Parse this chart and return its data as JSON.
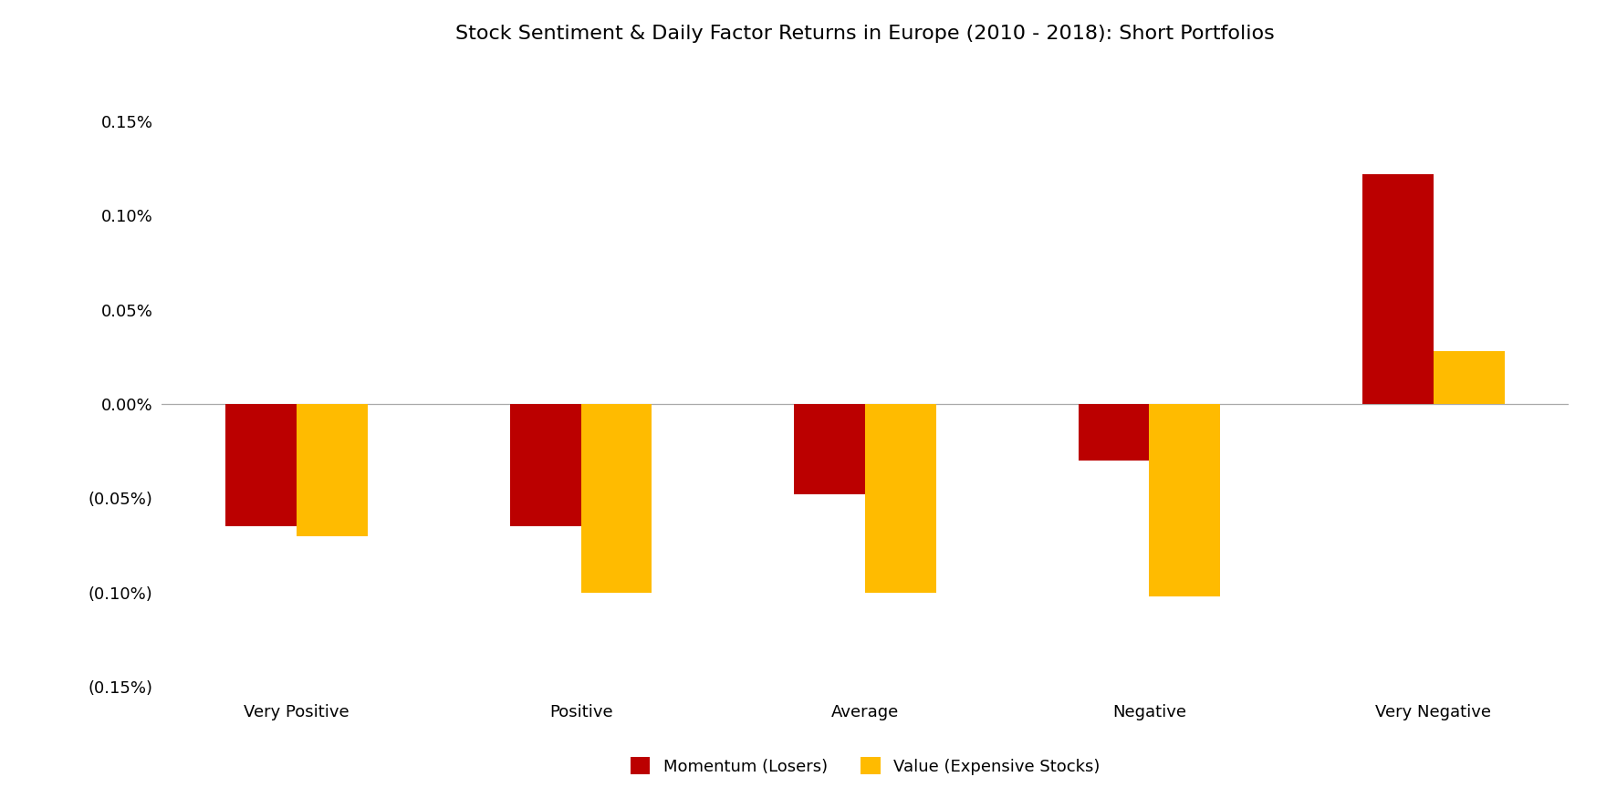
{
  "title": "Stock Sentiment & Daily Factor Returns in Europe (2010 - 2018): Short Portfolios",
  "categories": [
    "Very Positive",
    "Positive",
    "Average",
    "Negative",
    "Very Negative"
  ],
  "momentum_values": [
    -0.00065,
    -0.00065,
    -0.00048,
    -0.0003,
    0.00122
  ],
  "value_values": [
    -0.0007,
    -0.001,
    -0.001,
    -0.00102,
    0.00028
  ],
  "momentum_color": "#bb0000",
  "value_color": "#ffbb00",
  "momentum_label": "Momentum (Losers)",
  "value_label": "Value (Expensive Stocks)",
  "ylim_min": -0.0015,
  "ylim_max": 0.0018,
  "yticks": [
    -0.0015,
    -0.001,
    -0.0005,
    0.0,
    0.0005,
    0.001,
    0.0015
  ],
  "background_color": "#ffffff",
  "zero_line_color": "#aaaaaa",
  "bar_width": 0.25,
  "title_fontsize": 16,
  "tick_fontsize": 13,
  "legend_fontsize": 13
}
